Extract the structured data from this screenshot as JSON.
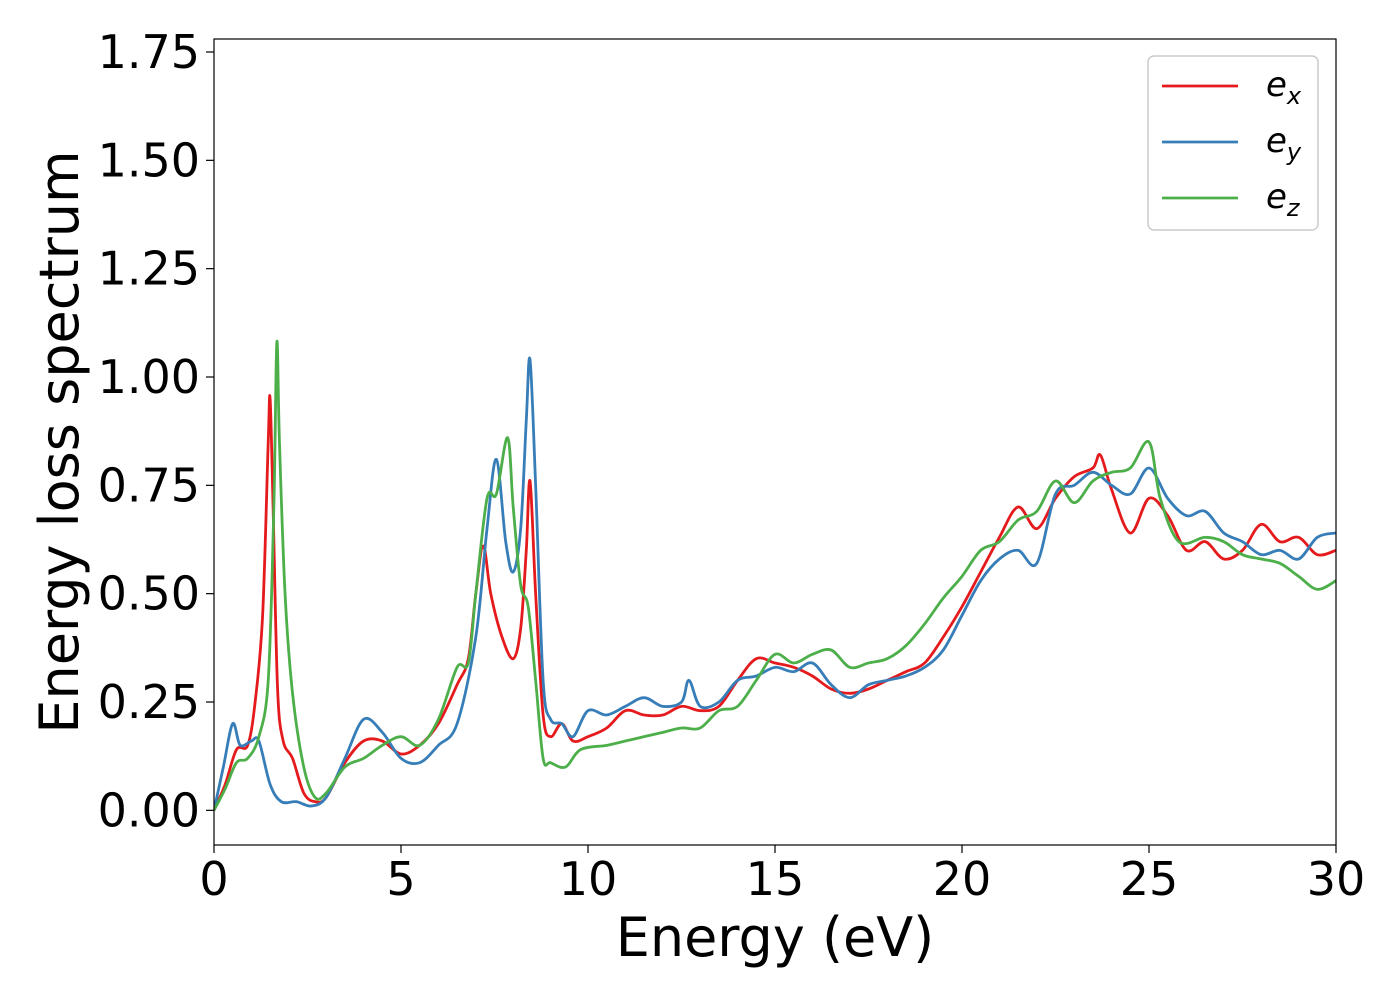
{
  "chart_data": {
    "type": "line",
    "xlabel": "Energy (eV)",
    "ylabel": "Energy loss spectrum",
    "xlim": [
      0,
      30
    ],
    "ylim": [
      -0.08,
      1.78
    ],
    "xticks": [
      0,
      5,
      10,
      15,
      20,
      25,
      30
    ],
    "xtick_labels": [
      "0",
      "5",
      "10",
      "15",
      "20",
      "25",
      "30"
    ],
    "yticks": [
      0.0,
      0.25,
      0.5,
      0.75,
      1.0,
      1.25,
      1.5,
      1.75
    ],
    "ytick_labels": [
      "0.00",
      "0.25",
      "0.50",
      "0.75",
      "1.00",
      "1.25",
      "1.50",
      "1.75"
    ],
    "grid": false,
    "legend_position": "top-right",
    "series": [
      {
        "name": "e_x",
        "label_base": "e",
        "label_sub": "x",
        "color": "#e41a1c",
        "points": [
          [
            0,
            0.0
          ],
          [
            0.3,
            0.06
          ],
          [
            0.6,
            0.14
          ],
          [
            0.9,
            0.15
          ],
          [
            1.1,
            0.25
          ],
          [
            1.3,
            0.45
          ],
          [
            1.45,
            0.85
          ],
          [
            1.5,
            0.95
          ],
          [
            1.58,
            0.7
          ],
          [
            1.7,
            0.28
          ],
          [
            1.85,
            0.16
          ],
          [
            2.1,
            0.12
          ],
          [
            2.4,
            0.04
          ],
          [
            2.7,
            0.02
          ],
          [
            3.0,
            0.03
          ],
          [
            3.5,
            0.11
          ],
          [
            4.0,
            0.16
          ],
          [
            4.5,
            0.16
          ],
          [
            5.0,
            0.13
          ],
          [
            5.5,
            0.15
          ],
          [
            6.0,
            0.2
          ],
          [
            6.5,
            0.29
          ],
          [
            6.8,
            0.35
          ],
          [
            7.0,
            0.5
          ],
          [
            7.2,
            0.61
          ],
          [
            7.4,
            0.5
          ],
          [
            7.7,
            0.4
          ],
          [
            8.0,
            0.35
          ],
          [
            8.2,
            0.42
          ],
          [
            8.35,
            0.6
          ],
          [
            8.45,
            0.76
          ],
          [
            8.6,
            0.5
          ],
          [
            8.8,
            0.22
          ],
          [
            9.0,
            0.17
          ],
          [
            9.3,
            0.2
          ],
          [
            9.6,
            0.16
          ],
          [
            10.0,
            0.17
          ],
          [
            10.5,
            0.19
          ],
          [
            11.0,
            0.23
          ],
          [
            11.5,
            0.22
          ],
          [
            12.0,
            0.22
          ],
          [
            12.5,
            0.24
          ],
          [
            13.0,
            0.23
          ],
          [
            13.5,
            0.24
          ],
          [
            14.0,
            0.3
          ],
          [
            14.5,
            0.35
          ],
          [
            15.0,
            0.34
          ],
          [
            15.5,
            0.33
          ],
          [
            16.0,
            0.31
          ],
          [
            16.5,
            0.28
          ],
          [
            17.0,
            0.27
          ],
          [
            17.5,
            0.28
          ],
          [
            18.0,
            0.3
          ],
          [
            18.5,
            0.32
          ],
          [
            19.0,
            0.34
          ],
          [
            19.5,
            0.4
          ],
          [
            20.0,
            0.47
          ],
          [
            20.5,
            0.55
          ],
          [
            21.0,
            0.63
          ],
          [
            21.5,
            0.7
          ],
          [
            22.0,
            0.65
          ],
          [
            22.5,
            0.72
          ],
          [
            23.0,
            0.77
          ],
          [
            23.5,
            0.79
          ],
          [
            23.7,
            0.82
          ],
          [
            24.0,
            0.74
          ],
          [
            24.5,
            0.64
          ],
          [
            25.0,
            0.72
          ],
          [
            25.5,
            0.68
          ],
          [
            26.0,
            0.6
          ],
          [
            26.5,
            0.62
          ],
          [
            27.0,
            0.58
          ],
          [
            27.5,
            0.6
          ],
          [
            28.0,
            0.66
          ],
          [
            28.5,
            0.62
          ],
          [
            29.0,
            0.63
          ],
          [
            29.5,
            0.59
          ],
          [
            30.0,
            0.6
          ]
        ]
      },
      {
        "name": "e_y",
        "label_base": "e",
        "label_sub": "y",
        "color": "#377eb8",
        "points": [
          [
            0,
            0.0
          ],
          [
            0.25,
            0.1
          ],
          [
            0.5,
            0.2
          ],
          [
            0.7,
            0.15
          ],
          [
            1.0,
            0.16
          ],
          [
            1.2,
            0.16
          ],
          [
            1.5,
            0.06
          ],
          [
            1.8,
            0.02
          ],
          [
            2.2,
            0.02
          ],
          [
            2.6,
            0.01
          ],
          [
            3.0,
            0.03
          ],
          [
            3.5,
            0.12
          ],
          [
            4.0,
            0.21
          ],
          [
            4.5,
            0.18
          ],
          [
            5.0,
            0.12
          ],
          [
            5.5,
            0.11
          ],
          [
            6.0,
            0.15
          ],
          [
            6.5,
            0.2
          ],
          [
            7.0,
            0.4
          ],
          [
            7.3,
            0.65
          ],
          [
            7.55,
            0.81
          ],
          [
            7.8,
            0.62
          ],
          [
            8.0,
            0.55
          ],
          [
            8.2,
            0.65
          ],
          [
            8.35,
            0.9
          ],
          [
            8.45,
            1.04
          ],
          [
            8.6,
            0.75
          ],
          [
            8.8,
            0.3
          ],
          [
            9.0,
            0.21
          ],
          [
            9.3,
            0.2
          ],
          [
            9.6,
            0.17
          ],
          [
            10.0,
            0.23
          ],
          [
            10.5,
            0.22
          ],
          [
            11.0,
            0.24
          ],
          [
            11.5,
            0.26
          ],
          [
            12.0,
            0.24
          ],
          [
            12.5,
            0.25
          ],
          [
            12.7,
            0.3
          ],
          [
            13.0,
            0.24
          ],
          [
            13.5,
            0.25
          ],
          [
            14.0,
            0.3
          ],
          [
            14.5,
            0.31
          ],
          [
            15.0,
            0.33
          ],
          [
            15.5,
            0.32
          ],
          [
            16.0,
            0.34
          ],
          [
            16.5,
            0.29
          ],
          [
            17.0,
            0.26
          ],
          [
            17.5,
            0.29
          ],
          [
            18.0,
            0.3
          ],
          [
            18.5,
            0.31
          ],
          [
            19.0,
            0.33
          ],
          [
            19.5,
            0.37
          ],
          [
            20.0,
            0.45
          ],
          [
            20.5,
            0.53
          ],
          [
            21.0,
            0.58
          ],
          [
            21.5,
            0.6
          ],
          [
            22.0,
            0.57
          ],
          [
            22.5,
            0.73
          ],
          [
            23.0,
            0.75
          ],
          [
            23.5,
            0.78
          ],
          [
            24.0,
            0.75
          ],
          [
            24.5,
            0.73
          ],
          [
            25.0,
            0.79
          ],
          [
            25.5,
            0.72
          ],
          [
            26.0,
            0.68
          ],
          [
            26.5,
            0.69
          ],
          [
            27.0,
            0.64
          ],
          [
            27.5,
            0.62
          ],
          [
            28.0,
            0.59
          ],
          [
            28.5,
            0.6
          ],
          [
            29.0,
            0.58
          ],
          [
            29.5,
            0.63
          ],
          [
            30.0,
            0.64
          ]
        ]
      },
      {
        "name": "e_z",
        "label_base": "e",
        "label_sub": "z",
        "color": "#4daf4a",
        "points": [
          [
            0,
            0.0
          ],
          [
            0.3,
            0.05
          ],
          [
            0.6,
            0.11
          ],
          [
            0.9,
            0.12
          ],
          [
            1.2,
            0.17
          ],
          [
            1.45,
            0.3
          ],
          [
            1.6,
            0.7
          ],
          [
            1.68,
            1.08
          ],
          [
            1.75,
            0.85
          ],
          [
            1.9,
            0.5
          ],
          [
            2.1,
            0.27
          ],
          [
            2.4,
            0.1
          ],
          [
            2.7,
            0.03
          ],
          [
            3.0,
            0.04
          ],
          [
            3.5,
            0.1
          ],
          [
            4.0,
            0.12
          ],
          [
            4.5,
            0.15
          ],
          [
            5.0,
            0.17
          ],
          [
            5.5,
            0.15
          ],
          [
            6.0,
            0.21
          ],
          [
            6.5,
            0.33
          ],
          [
            6.8,
            0.34
          ],
          [
            7.0,
            0.5
          ],
          [
            7.3,
            0.72
          ],
          [
            7.55,
            0.73
          ],
          [
            7.85,
            0.86
          ],
          [
            8.0,
            0.7
          ],
          [
            8.2,
            0.52
          ],
          [
            8.4,
            0.47
          ],
          [
            8.6,
            0.3
          ],
          [
            8.8,
            0.12
          ],
          [
            9.0,
            0.11
          ],
          [
            9.4,
            0.1
          ],
          [
            9.8,
            0.14
          ],
          [
            10.5,
            0.15
          ],
          [
            11.0,
            0.16
          ],
          [
            11.5,
            0.17
          ],
          [
            12.0,
            0.18
          ],
          [
            12.5,
            0.19
          ],
          [
            13.0,
            0.19
          ],
          [
            13.5,
            0.23
          ],
          [
            14.0,
            0.24
          ],
          [
            14.5,
            0.3
          ],
          [
            15.0,
            0.36
          ],
          [
            15.5,
            0.34
          ],
          [
            16.0,
            0.36
          ],
          [
            16.5,
            0.37
          ],
          [
            17.0,
            0.33
          ],
          [
            17.5,
            0.34
          ],
          [
            18.0,
            0.35
          ],
          [
            18.5,
            0.38
          ],
          [
            19.0,
            0.43
          ],
          [
            19.5,
            0.49
          ],
          [
            20.0,
            0.54
          ],
          [
            20.5,
            0.6
          ],
          [
            21.0,
            0.62
          ],
          [
            21.5,
            0.67
          ],
          [
            22.0,
            0.69
          ],
          [
            22.5,
            0.76
          ],
          [
            23.0,
            0.71
          ],
          [
            23.5,
            0.76
          ],
          [
            24.0,
            0.78
          ],
          [
            24.5,
            0.79
          ],
          [
            25.0,
            0.85
          ],
          [
            25.3,
            0.72
          ],
          [
            25.8,
            0.62
          ],
          [
            26.5,
            0.63
          ],
          [
            27.0,
            0.62
          ],
          [
            27.5,
            0.59
          ],
          [
            28.0,
            0.58
          ],
          [
            28.5,
            0.57
          ],
          [
            29.0,
            0.54
          ],
          [
            29.5,
            0.51
          ],
          [
            30.0,
            0.53
          ]
        ]
      }
    ]
  }
}
